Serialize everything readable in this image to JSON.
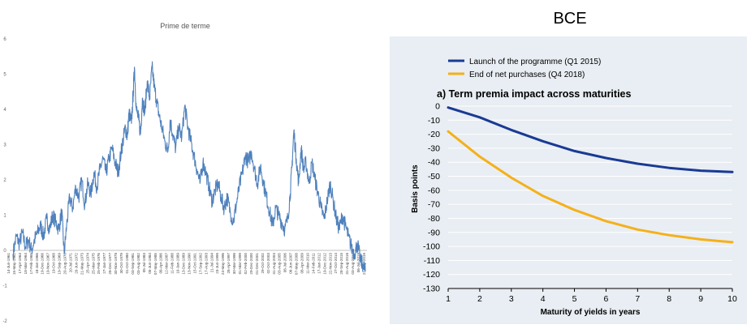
{
  "header": {
    "right_title": "BCE"
  },
  "chart_data": [
    {
      "type": "line",
      "title": "Prime de terme",
      "ylim": [
        -2,
        6
      ],
      "yticks": [
        "-2",
        "-1",
        "0",
        "1",
        "2",
        "3",
        "4",
        "5",
        "6"
      ],
      "grid": false,
      "legend": "none",
      "color": "#4f81bd",
      "x_tick_labels": [
        "14-Jun-1961",
        "15-May-1962",
        "17-Apr-1963",
        "18-Mar-1964",
        "17-Feb-1965",
        "18-Jan-1966",
        "19-Dec-1966",
        "19-Nov-1967",
        "19-Oct-1968",
        "19-Sep-1969",
        "20-Aug-1970",
        "20-Jul-1971",
        "20-Jun-1972",
        "21-May-1973",
        "25-Apr-1974",
        "25-Mar-1975",
        "25-Feb-1976",
        "27-Jan-1977",
        "28-Dec-1977",
        "30-Nov-1978",
        "30-Oct-1979",
        "01-Oct-1980",
        "03-Sep-1981",
        "03-Aug-1982",
        "05-Jul-1983",
        "05-Jun-1984",
        "07-May-1985",
        "08-Apr-1986",
        "12-Mar-1987",
        "11-Feb-1988",
        "10-Jan-1989",
        "13-Dec-1989",
        "13-Nov-1990",
        "15-Oct-1991",
        "17-Sep-1992",
        "17-Aug-1993",
        "21-Jul-1994",
        "23-Jun-1995",
        "24-May-1996",
        "28-Apr-1997",
        "30-Mar-1998",
        "01-Mar-1999",
        "02-Feb-2000",
        "29-Dec-2000",
        "01-Dec-2001",
        "29-Oct-2002",
        "02-Oct-2003",
        "31-Aug-2004",
        "03-Aug-2005",
        "06-Jul-2006",
        "06-Jun-2007",
        "07-May-2008",
        "08-Apr-2009",
        "11-Mar-2010",
        "14-Feb-2011",
        "17-Jan-2012",
        "19-Dec-2012",
        "22-Nov-2013",
        "27-Oct-2014",
        "28-Sep-2015",
        "31-Aug-2016",
        "03-Aug-2017",
        "06-Jul-2018",
        "21-May-2019"
      ],
      "x": [
        1961.45,
        1962.0,
        1962.5,
        1963.0,
        1963.5,
        1964.0,
        1964.5,
        1965.0,
        1965.5,
        1966.0,
        1966.5,
        1967.0,
        1967.5,
        1968.0,
        1968.5,
        1969.0,
        1969.5,
        1969.9,
        1970.3,
        1970.8,
        1971.3,
        1971.8,
        1972.3,
        1972.8,
        1973.3,
        1973.8,
        1974.3,
        1974.8,
        1975.3,
        1975.8,
        1976.3,
        1976.8,
        1977.3,
        1977.8,
        1978.3,
        1978.8,
        1979.3,
        1979.6,
        1980.0,
        1980.3,
        1980.6,
        1981.0,
        1981.3,
        1981.5,
        1981.8,
        1982.2,
        1982.5,
        1982.8,
        1983.2,
        1983.6,
        1984.0,
        1984.4,
        1984.8,
        1985.2,
        1985.6,
        1986.0,
        1986.5,
        1987.0,
        1987.4,
        1987.8,
        1988.3,
        1988.8,
        1989.3,
        1989.8,
        1990.3,
        1990.8,
        1991.3,
        1991.8,
        1992.3,
        1992.8,
        1993.3,
        1993.8,
        1994.3,
        1994.8,
        1995.3,
        1995.8,
        1996.3,
        1996.8,
        1997.3,
        1997.8,
        1998.3,
        1998.8,
        1999.3,
        1999.8,
        2000.3,
        2000.8,
        2001.3,
        2001.8,
        2002.3,
        2002.8,
        2003.3,
        2003.8,
        2004.3,
        2004.8,
        2005.3,
        2005.8,
        2006.3,
        2006.8,
        2007.2,
        2007.5,
        2007.8,
        2008.2,
        2008.6,
        2009.0,
        2009.4,
        2009.8,
        2010.3,
        2010.8,
        2011.3,
        2011.8,
        2012.3,
        2012.8,
        2013.3,
        2013.8,
        2014.3,
        2014.8,
        2015.3,
        2015.8,
        2016.3,
        2016.8,
        2017.3,
        2017.8,
        2018.3,
        2018.8,
        2019.2,
        2019.6
      ],
      "series": [
        {
          "values": [
            -0.1,
            0.4,
            0.2,
            0.5,
            0.1,
            0.3,
            0.0,
            0.3,
            0.5,
            0.7,
            0.4,
            0.9,
            0.6,
            1.0,
            0.8,
            0.6,
            1.1,
            -0.1,
            0.7,
            1.5,
            1.2,
            1.8,
            1.5,
            2.0,
            1.3,
            1.9,
            1.6,
            2.2,
            1.8,
            2.3,
            2.6,
            2.2,
            2.6,
            2.9,
            2.5,
            2.2,
            2.8,
            3.1,
            3.5,
            3.2,
            3.9,
            3.6,
            4.5,
            5.2,
            4.0,
            3.7,
            3.3,
            4.3,
            3.9,
            4.8,
            4.3,
            5.2,
            4.6,
            4.2,
            3.8,
            3.5,
            3.1,
            2.8,
            3.7,
            3.3,
            2.9,
            3.5,
            3.2,
            4.1,
            3.5,
            3.1,
            2.7,
            2.3,
            1.9,
            2.5,
            2.2,
            1.8,
            1.4,
            1.7,
            1.9,
            1.5,
            1.2,
            1.5,
            1.1,
            0.8,
            1.3,
            1.8,
            2.2,
            2.7,
            2.5,
            2.8,
            2.3,
            1.9,
            2.4,
            1.9,
            1.5,
            1.1,
            0.7,
            1.2,
            1.0,
            0.8,
            0.6,
            0.9,
            1.6,
            2.4,
            3.4,
            2.6,
            1.9,
            2.9,
            2.3,
            2.5,
            1.9,
            2.5,
            2.0,
            1.6,
            1.2,
            0.9,
            1.4,
            1.9,
            1.4,
            0.9,
            0.6,
            1.0,
            0.7,
            0.4,
            0.1,
            -0.1,
            0.2,
            -0.3,
            -0.4,
            -0.6
          ]
        }
      ]
    },
    {
      "type": "line",
      "title": "a) Term premia impact across maturities",
      "xlabel": "Maturity of yields in years",
      "ylabel": "Basis points",
      "xlim": [
        1,
        10
      ],
      "ylim": [
        -130,
        0
      ],
      "xticks": [
        1,
        2,
        3,
        4,
        5,
        6,
        7,
        8,
        9,
        10
      ],
      "yticks": [
        0,
        -10,
        -20,
        -30,
        -40,
        -50,
        -60,
        -70,
        -80,
        -90,
        -100,
        -110,
        -120,
        -130
      ],
      "ytick_labels": [
        "0",
        "-10",
        "-20",
        "-30",
        "-40",
        "-50",
        "-60",
        "-70",
        "-80",
        "-90",
        "-100",
        "-110",
        "-120",
        "-130"
      ],
      "grid": true,
      "legend": "top-left",
      "x": [
        1,
        2,
        3,
        4,
        5,
        6,
        7,
        8,
        9,
        10
      ],
      "series": [
        {
          "name": "Launch of the programme (Q1 2015)",
          "color": "#1a3a94",
          "values": [
            -1,
            -8,
            -17,
            -25,
            -32,
            -37,
            -41,
            -44,
            -46,
            -47
          ]
        },
        {
          "name": "End of net purchases (Q4 2018)",
          "color": "#f5b01a",
          "values": [
            -18,
            -36,
            -51,
            -64,
            -74,
            -82,
            -88,
            -92,
            -95,
            -97
          ]
        }
      ]
    }
  ]
}
